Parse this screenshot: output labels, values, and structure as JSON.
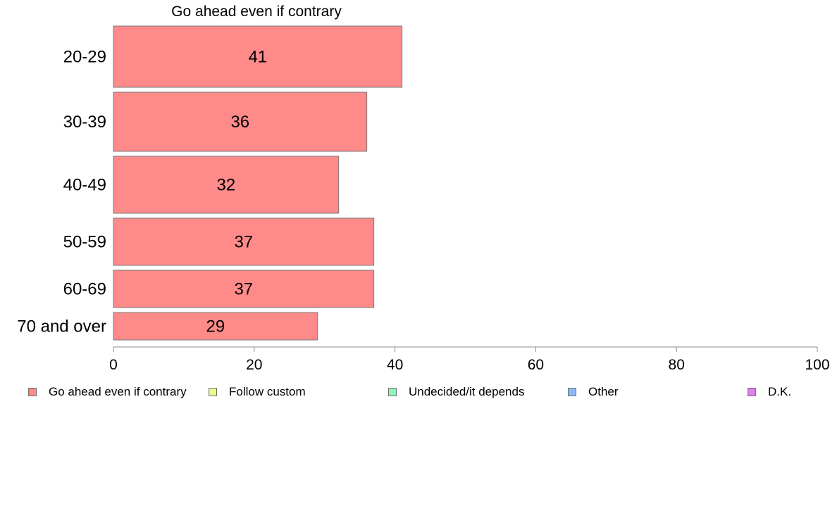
{
  "chart_data": {
    "type": "bar",
    "orientation": "horizontal",
    "title": "Go ahead even if contrary",
    "categories": [
      "20-29",
      "30-39",
      "40-49",
      "50-59",
      "60-69",
      "70 and over"
    ],
    "series": [
      {
        "name": "Go ahead even if contrary",
        "values": [
          41,
          36,
          32,
          37,
          37,
          29
        ],
        "color": "#ff8a8a"
      }
    ],
    "xlim": [
      0,
      100
    ],
    "xticks": [
      "0",
      "20",
      "40",
      "60",
      "80",
      "100"
    ],
    "grid": false,
    "legend_position": "bottom"
  },
  "legend": [
    {
      "label": "Go ahead even if contrary",
      "color": "#ff8a8a"
    },
    {
      "label": "Follow custom",
      "color": "#ecf98c"
    },
    {
      "label": "Undecided/it depends",
      "color": "#8cf9b3"
    },
    {
      "label": "Other",
      "color": "#8cbaf9"
    },
    {
      "label": "D.K.",
      "color": "#e27ff0"
    }
  ]
}
